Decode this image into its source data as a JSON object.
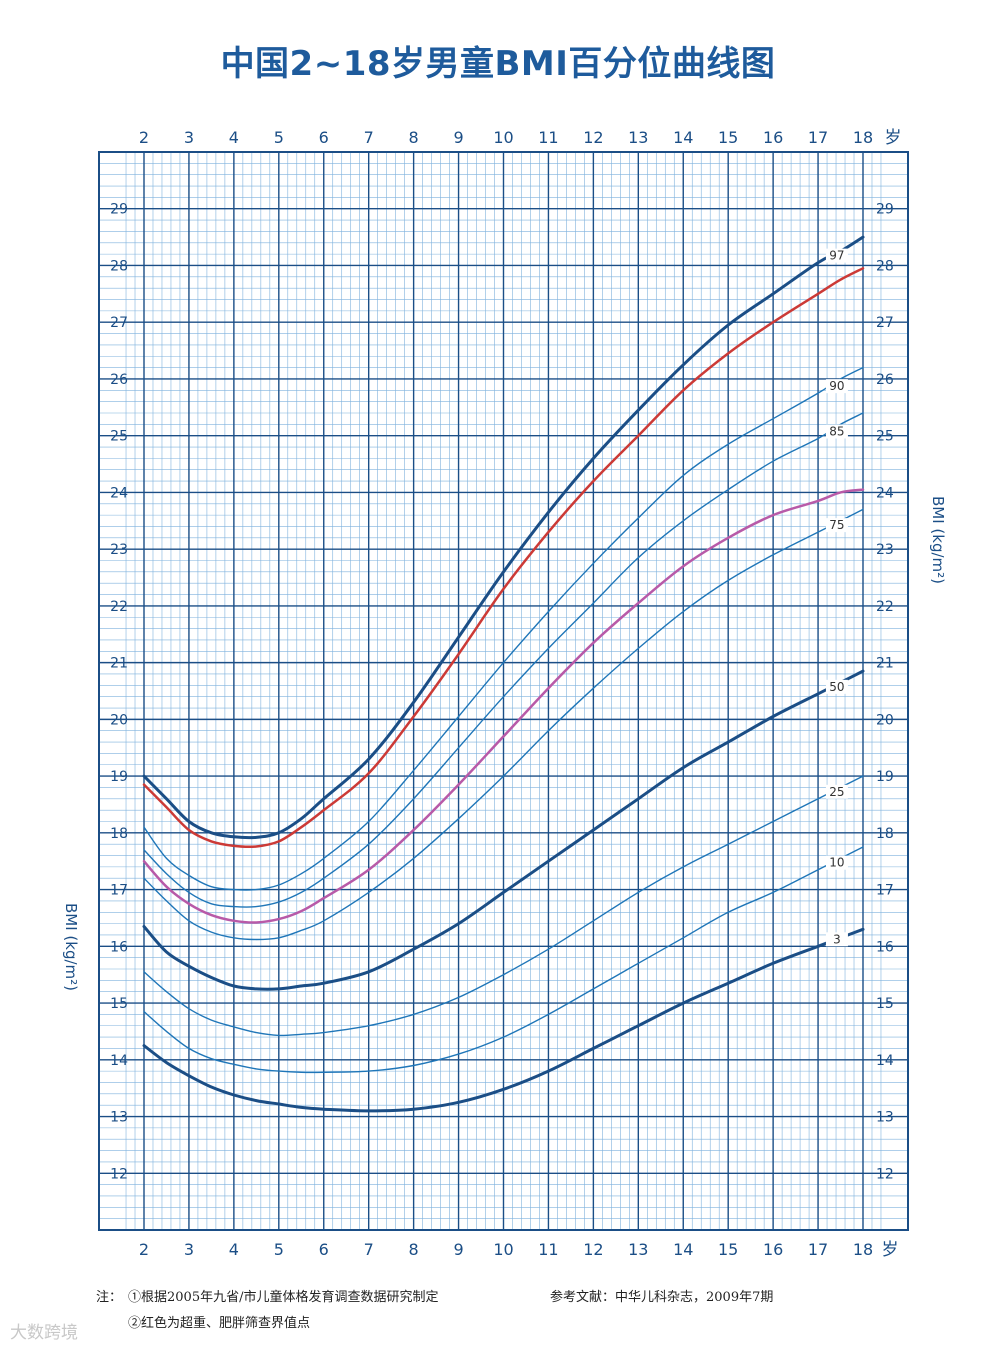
{
  "chart_data": {
    "type": "line",
    "title": "中国2~18岁男童BMI百分位曲线图",
    "ylabel_left": "BMI (kg/m²)",
    "ylabel_right": "BMI (kg/m²)",
    "x_tick_labels": [
      "2",
      "3",
      "4",
      "5",
      "6",
      "7",
      "8",
      "9",
      "10",
      "11",
      "12",
      "13",
      "14",
      "15",
      "16",
      "17",
      "18"
    ],
    "x_unit": "岁",
    "xlim": [
      2,
      18
    ],
    "ylim": [
      11,
      30
    ],
    "y_tick_labels": [
      "12",
      "13",
      "14",
      "15",
      "16",
      "17",
      "18",
      "19",
      "20",
      "21",
      "22",
      "23",
      "24",
      "25",
      "26",
      "27",
      "28",
      "29"
    ],
    "grid": true,
    "x": [
      2,
      2.5,
      3,
      3.5,
      4,
      4.5,
      5,
      5.5,
      6,
      7,
      8,
      9,
      10,
      11,
      12,
      13,
      14,
      15,
      16,
      17,
      17.5,
      18
    ],
    "series": [
      {
        "name": "97",
        "color": "#1b4e86",
        "width": 3,
        "label": "97",
        "values": [
          19.0,
          18.6,
          18.2,
          18.0,
          17.93,
          17.92,
          18.0,
          18.25,
          18.6,
          19.3,
          20.3,
          21.45,
          22.6,
          23.65,
          24.6,
          25.45,
          26.25,
          26.95,
          27.5,
          28.05,
          28.25,
          28.5
        ]
      },
      {
        "name": "",
        "color": "#cc3a36",
        "width": 2.5,
        "label": "",
        "values": [
          18.85,
          18.45,
          18.05,
          17.85,
          17.77,
          17.76,
          17.85,
          18.1,
          18.4,
          19.05,
          20.05,
          21.15,
          22.3,
          23.3,
          24.2,
          25.0,
          25.8,
          26.45,
          27.0,
          27.5,
          27.75,
          27.95
        ]
      },
      {
        "name": "90",
        "color": "#1f76b8",
        "width": 1.4,
        "label": "90",
        "values": [
          18.1,
          17.55,
          17.25,
          17.05,
          17.0,
          17.0,
          17.08,
          17.28,
          17.55,
          18.2,
          19.1,
          20.05,
          21.0,
          21.9,
          22.75,
          23.55,
          24.3,
          24.85,
          25.3,
          25.75,
          26.0,
          26.2
        ]
      },
      {
        "name": "85",
        "color": "#1f76b8",
        "width": 1.4,
        "label": "85",
        "values": [
          17.7,
          17.28,
          16.95,
          16.75,
          16.7,
          16.7,
          16.78,
          16.95,
          17.2,
          17.8,
          18.6,
          19.5,
          20.4,
          21.25,
          22.05,
          22.85,
          23.5,
          24.05,
          24.55,
          24.95,
          25.2,
          25.4
        ]
      },
      {
        "name": "",
        "color": "#b85aa8",
        "width": 2.5,
        "label": "",
        "values": [
          17.5,
          17.05,
          16.75,
          16.55,
          16.45,
          16.42,
          16.48,
          16.62,
          16.85,
          17.35,
          18.05,
          18.85,
          19.7,
          20.55,
          21.35,
          22.05,
          22.7,
          23.2,
          23.6,
          23.85,
          24.0,
          24.05
        ]
      },
      {
        "name": "75",
        "color": "#1f76b8",
        "width": 1.4,
        "label": "75",
        "values": [
          17.2,
          16.8,
          16.45,
          16.25,
          16.15,
          16.12,
          16.15,
          16.28,
          16.45,
          16.95,
          17.55,
          18.25,
          19.0,
          19.8,
          20.55,
          21.25,
          21.9,
          22.45,
          22.9,
          23.3,
          23.5,
          23.7
        ]
      },
      {
        "name": "50",
        "color": "#1b4e86",
        "width": 3,
        "label": "50",
        "values": [
          16.35,
          15.9,
          15.65,
          15.45,
          15.3,
          15.25,
          15.25,
          15.3,
          15.35,
          15.55,
          15.95,
          16.4,
          16.95,
          17.5,
          18.05,
          18.6,
          19.15,
          19.6,
          20.05,
          20.45,
          20.65,
          20.85
        ]
      },
      {
        "name": "25",
        "color": "#1f76b8",
        "width": 1.4,
        "label": "25",
        "values": [
          15.55,
          15.2,
          14.9,
          14.7,
          14.58,
          14.48,
          14.43,
          14.45,
          14.48,
          14.6,
          14.8,
          15.1,
          15.5,
          15.95,
          16.45,
          16.95,
          17.4,
          17.8,
          18.2,
          18.6,
          18.8,
          19.0
        ]
      },
      {
        "name": "10",
        "color": "#1f76b8",
        "width": 1.4,
        "label": "10",
        "values": [
          14.85,
          14.5,
          14.2,
          14.02,
          13.92,
          13.84,
          13.8,
          13.78,
          13.78,
          13.8,
          13.9,
          14.1,
          14.4,
          14.8,
          15.25,
          15.7,
          16.15,
          16.6,
          16.95,
          17.35,
          17.55,
          17.75
        ]
      },
      {
        "name": "3",
        "color": "#1b4e86",
        "width": 3,
        "label": "3",
        "values": [
          14.25,
          13.95,
          13.72,
          13.52,
          13.38,
          13.28,
          13.22,
          13.16,
          13.13,
          13.1,
          13.13,
          13.25,
          13.48,
          13.8,
          14.2,
          14.6,
          15.0,
          15.35,
          15.7,
          16.0,
          16.15,
          16.3
        ]
      }
    ],
    "colors": {
      "grid_major": "#1b4e86",
      "grid_minor": "#7fb2dd",
      "axis_text": "#1b4e86",
      "title": "#1e5b9c"
    }
  },
  "notes": {
    "prefix": "注：",
    "line1": "①根据2005年九省/市儿童体格发育调查数据研究制定",
    "line2": "②红色为超重、肥胖筛查界值点",
    "reference": "参考文献：中华儿科杂志，2009年7期"
  },
  "watermark": "大数跨境"
}
